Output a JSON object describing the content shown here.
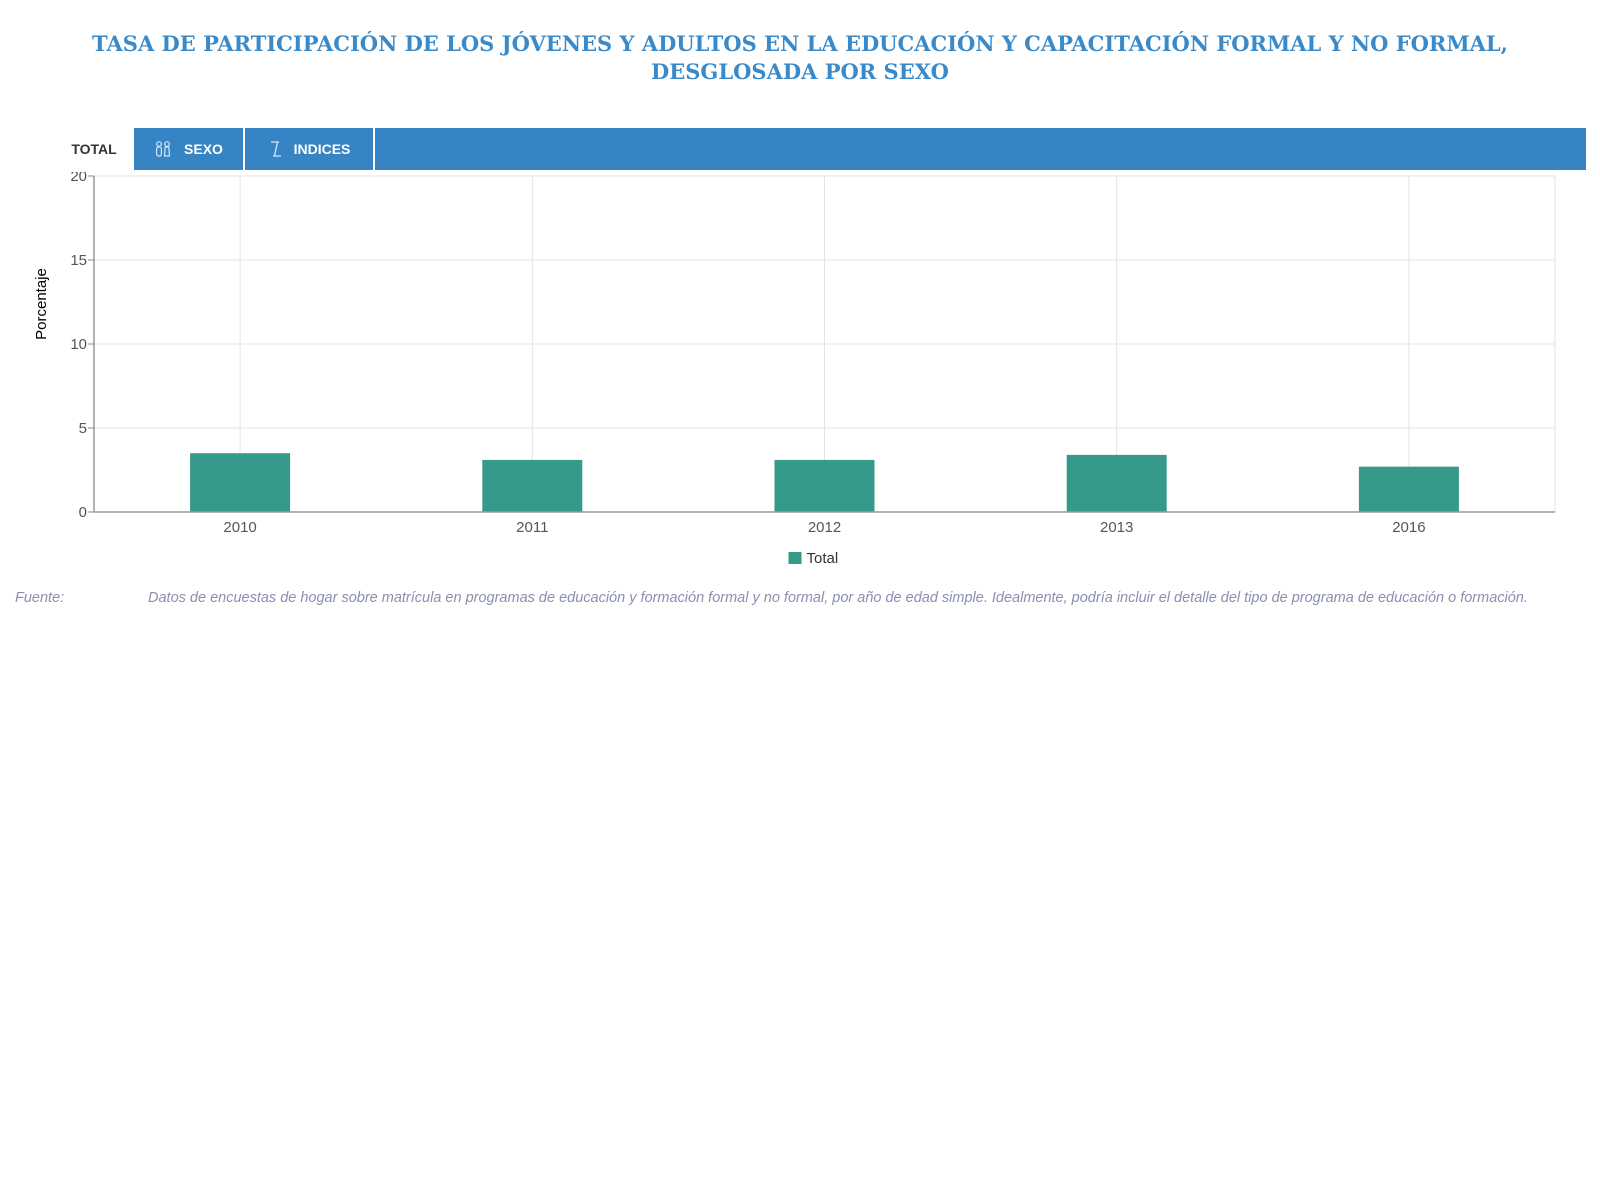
{
  "page": {
    "title": "TASA DE PARTICIPACIÓN DE LOS JÓVENES Y ADULTOS EN LA EDUCACIÓN Y CAPACITACIÓN FORMAL Y NO FORMAL, DESGLOSADA POR SEXO"
  },
  "tabs": [
    {
      "label": "TOTAL",
      "icon": null,
      "active": true
    },
    {
      "label": "SEXO",
      "icon": "gender-icon",
      "active": false
    },
    {
      "label": "INDICES",
      "icon": "index-icon",
      "active": false
    }
  ],
  "colors": {
    "title": "#3a8ac9",
    "tabbar": "#3784c4",
    "bar": "#369a8a"
  },
  "chart_data": {
    "type": "bar",
    "categories": [
      "2010",
      "2011",
      "2012",
      "2013",
      "2016"
    ],
    "series": [
      {
        "name": "Total",
        "values": [
          3.5,
          3.1,
          3.1,
          3.4,
          2.7
        ],
        "color": "#369a8a"
      }
    ],
    "ylabel": "Porcentaje",
    "xlabel": "",
    "ylim": [
      0,
      20
    ],
    "yticks": [
      0,
      5,
      10,
      15,
      20
    ],
    "grid": true,
    "legend_position": "bottom-center"
  },
  "source": {
    "label": "Fuente:",
    "text": "Datos de encuestas de hogar sobre matrícula en programas de educación y formación formal y no formal, por año de edad simple. Idealmente, podría incluir el detalle del tipo de programa de educación o formación."
  }
}
